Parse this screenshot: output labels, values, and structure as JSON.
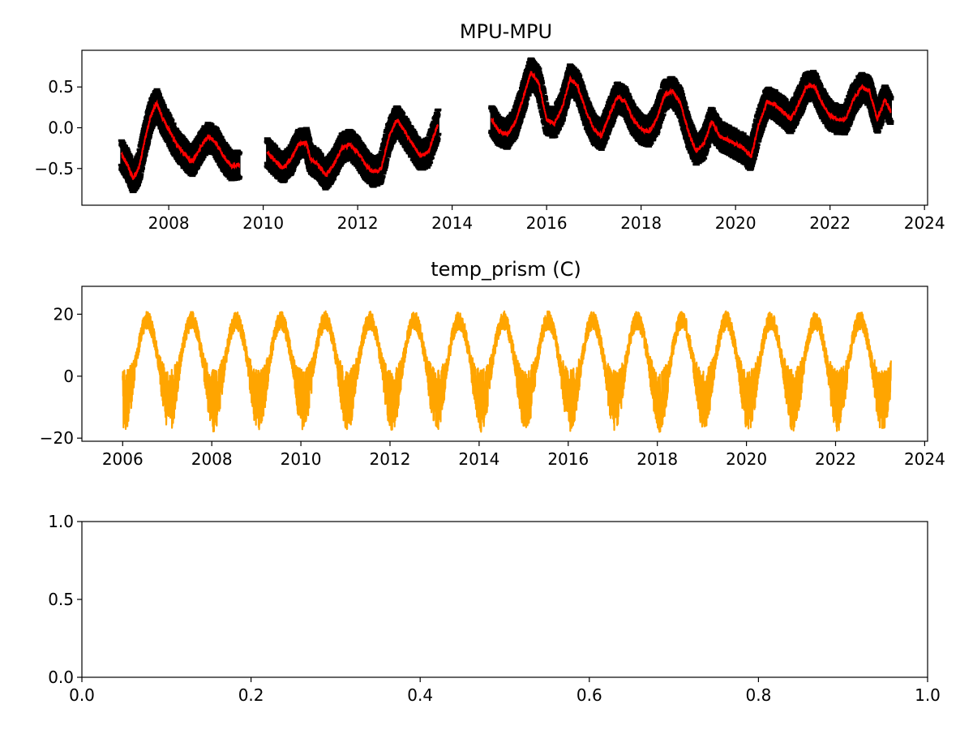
{
  "chart_data": [
    {
      "type": "line",
      "title": "MPU-MPU",
      "xlabel": "",
      "ylabel": "",
      "x_axis": "date",
      "xlim": [
        "2006-03-01",
        "2024-01-25"
      ],
      "ylim": [
        -0.95,
        0.95
      ],
      "xticks": [
        "2008",
        "2010",
        "2012",
        "2014",
        "2016",
        "2018",
        "2020",
        "2022",
        "2024"
      ],
      "yticks": [
        "−0.5",
        "0.0",
        "0.5"
      ],
      "ytick_values": [
        -0.5,
        0.0,
        0.5
      ],
      "grid": false,
      "error_bar_halfwidth": 0.15,
      "colors": {
        "series": "#ff0000",
        "error_bars": "#000000"
      },
      "series": [
        {
          "values_x": [
            "2007-01-01",
            "2007-02-15",
            "2007-04-01",
            "2007-05-15",
            "2007-07-01",
            "2007-08-15",
            "2007-10-01",
            "2007-11-15",
            "2008-01-01",
            "2008-03-01",
            "2008-05-01",
            "2008-07-01",
            "2008-09-01",
            "2008-11-01",
            "2009-01-01",
            "2009-03-01",
            "2009-05-01",
            "2009-06-30"
          ],
          "values_y": [
            -0.33,
            -0.45,
            -0.62,
            -0.5,
            -0.15,
            0.15,
            0.3,
            0.12,
            -0.02,
            -0.2,
            -0.32,
            -0.42,
            -0.25,
            -0.1,
            -0.18,
            -0.35,
            -0.47,
            -0.45
          ]
        },
        {
          "values_x": [
            "2010-02-01",
            "2010-04-01",
            "2010-06-01",
            "2010-08-01",
            "2010-10-01",
            "2010-12-01",
            "2011-01-01",
            "2011-03-01",
            "2011-05-01",
            "2011-07-01",
            "2011-09-01",
            "2011-11-01",
            "2012-01-01",
            "2012-03-01",
            "2012-05-01",
            "2012-07-01",
            "2012-09-01",
            "2012-11-01",
            "2013-01-01",
            "2013-03-01",
            "2013-05-01",
            "2013-07-01",
            "2013-09-15"
          ],
          "values_y": [
            -0.3,
            -0.4,
            -0.5,
            -0.4,
            -0.2,
            -0.18,
            -0.38,
            -0.45,
            -0.58,
            -0.45,
            -0.25,
            -0.2,
            -0.3,
            -0.45,
            -0.55,
            -0.5,
            -0.1,
            0.1,
            -0.05,
            -0.2,
            -0.35,
            -0.3,
            0.05
          ]
        },
        {
          "values_x": [
            "2014-11-01",
            "2015-01-01",
            "2015-03-01",
            "2015-05-01",
            "2015-07-01",
            "2015-09-01",
            "2015-11-01",
            "2016-01-01",
            "2016-03-01",
            "2016-05-01",
            "2016-07-01",
            "2016-09-01",
            "2016-11-01",
            "2017-01-01",
            "2017-03-01",
            "2017-05-01",
            "2017-07-01",
            "2017-09-01",
            "2017-11-01",
            "2018-01-01",
            "2018-03-01",
            "2018-05-01",
            "2018-07-01",
            "2018-09-01",
            "2018-11-01",
            "2019-01-01",
            "2019-03-01",
            "2019-05-01",
            "2019-07-01",
            "2019-09-01",
            "2019-11-01",
            "2020-01-01",
            "2020-03-01",
            "2020-05-01",
            "2020-07-01",
            "2020-09-01",
            "2020-11-01",
            "2021-01-01",
            "2021-03-01",
            "2021-05-01",
            "2021-07-01",
            "2021-09-01",
            "2021-11-01",
            "2022-01-01",
            "2022-03-01",
            "2022-05-01",
            "2022-07-01",
            "2022-09-01",
            "2022-11-01",
            "2023-01-01",
            "2023-03-01",
            "2023-04-15"
          ],
          "values_y": [
            0.1,
            -0.05,
            -0.08,
            0.05,
            0.35,
            0.68,
            0.55,
            0.1,
            0.05,
            0.25,
            0.6,
            0.5,
            0.2,
            -0.02,
            -0.1,
            0.15,
            0.38,
            0.32,
            0.1,
            -0.02,
            -0.05,
            0.1,
            0.4,
            0.45,
            0.3,
            -0.05,
            -0.28,
            -0.2,
            0.08,
            -0.1,
            -0.15,
            -0.2,
            -0.25,
            -0.35,
            0.05,
            0.32,
            0.28,
            0.2,
            0.1,
            0.28,
            0.5,
            0.52,
            0.3,
            0.15,
            0.1,
            0.1,
            0.35,
            0.5,
            0.45,
            0.1,
            0.35,
            0.2
          ]
        }
      ]
    },
    {
      "type": "line",
      "title": "temp_prism (C)",
      "xlabel": "",
      "ylabel": "",
      "x_axis": "date",
      "xlim": [
        "2005-02-01",
        "2024-01-25"
      ],
      "ylim": [
        -21,
        29
      ],
      "xticks": [
        "2006",
        "2008",
        "2010",
        "2012",
        "2014",
        "2016",
        "2018",
        "2020",
        "2022",
        "2024"
      ],
      "yticks": [
        "−20",
        "0",
        "20"
      ],
      "ytick_values": [
        -20,
        0,
        20
      ],
      "grid": false,
      "colors": {
        "series": "#ffa500"
      },
      "series": [
        {
          "start": "2006-01-01",
          "end": "2023-03-31",
          "mean": 5,
          "seasonal_amplitude": 13,
          "summer_peak": 24,
          "winter_low": -15
        }
      ]
    },
    {
      "type": "line",
      "title": "",
      "xlabel": "",
      "ylabel": "",
      "xlim": [
        0,
        1
      ],
      "ylim": [
        0,
        1
      ],
      "xticks": [
        "0.0",
        "0.2",
        "0.4",
        "0.6",
        "0.8",
        "1.0"
      ],
      "xtick_values": [
        0.0,
        0.2,
        0.4,
        0.6,
        0.8,
        1.0
      ],
      "yticks": [
        "0.0",
        "0.5",
        "1.0"
      ],
      "ytick_values": [
        0.0,
        0.5,
        1.0
      ],
      "grid": false,
      "series": []
    }
  ]
}
